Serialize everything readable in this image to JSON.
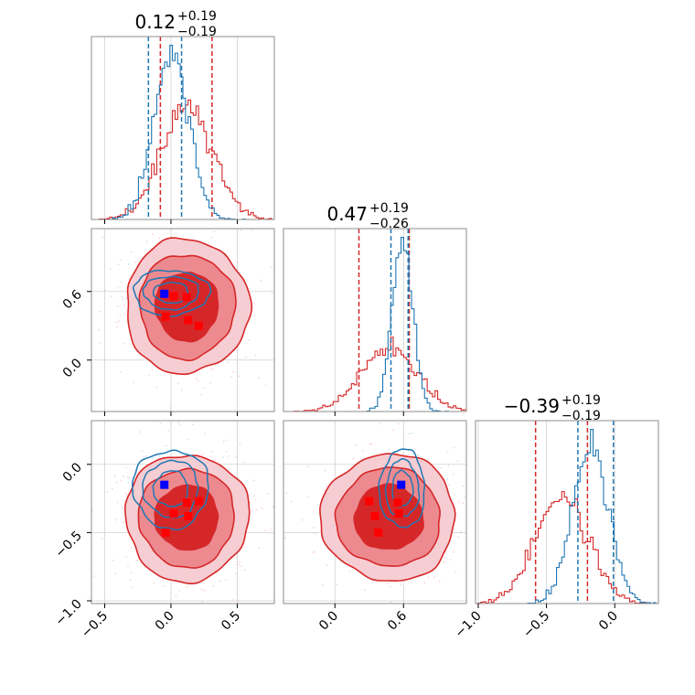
{
  "chart_data": {
    "type": "scatter",
    "subtype": "corner",
    "colors": {
      "series_a": "#1f77b4",
      "series_b": "#d62728",
      "marker_a": "#0000ff",
      "marker_b": "#ff0000"
    },
    "titles": [
      {
        "value": "0.12",
        "plus": "+0.19",
        "minus": "−0.19"
      },
      {
        "value": "0.47",
        "plus": "+0.19",
        "minus": "−0.26"
      },
      {
        "value": "−0.39",
        "plus": "+0.19",
        "minus": "−0.19"
      }
    ],
    "axes": {
      "p0": {
        "range": [
          -0.6,
          0.78
        ],
        "ticks": [
          -0.5,
          0.0,
          0.5
        ],
        "tick_labels": [
          "−0.5",
          "0.0",
          "0.5"
        ]
      },
      "p1": {
        "range": [
          -0.45,
          1.15
        ],
        "ticks": [
          0.0,
          0.6
        ],
        "tick_labels": [
          "0.0",
          "0.6"
        ]
      },
      "p2": {
        "range": [
          -1.02,
          0.32
        ],
        "ticks": [
          -1.0,
          -0.5,
          0.0
        ],
        "tick_labels": [
          "−1.0",
          "−0.5",
          "0.0"
        ]
      }
    },
    "histograms": {
      "p0": {
        "series_a": {
          "mean": 0.0,
          "sd": 0.13,
          "quantiles": [
            -0.17,
            0.08
          ]
        },
        "series_b": {
          "mean": 0.12,
          "sd": 0.19,
          "quantiles": [
            -0.08,
            0.31
          ]
        }
      },
      "p1": {
        "series_a": {
          "mean": 0.59,
          "sd": 0.09,
          "quantiles": [
            0.49,
            0.64
          ]
        },
        "series_b": {
          "mean": 0.47,
          "sd": 0.24,
          "quantiles": [
            0.21,
            0.65
          ]
        }
      },
      "p2": {
        "series_a": {
          "mean": -0.18,
          "sd": 0.13,
          "quantiles": [
            -0.27,
            -0.01
          ]
        },
        "series_b": {
          "mean": -0.39,
          "sd": 0.19,
          "quantiles": [
            -0.58,
            -0.2
          ]
        }
      }
    },
    "markers": {
      "series_a": [
        {
          "p0": -0.05,
          "p1": 0.58,
          "p2": -0.15
        }
      ],
      "series_b": [
        {
          "p0": 0.12,
          "p1": 0.55,
          "p2": -0.28
        },
        {
          "p0": -0.04,
          "p1": 0.38,
          "p2": -0.5
        },
        {
          "p0": 0.13,
          "p1": 0.35,
          "p2": -0.38
        },
        {
          "p0": 0.21,
          "p1": 0.3,
          "p2": -0.27
        },
        {
          "p0": 0.02,
          "p1": 0.56,
          "p2": -0.36
        }
      ]
    }
  }
}
